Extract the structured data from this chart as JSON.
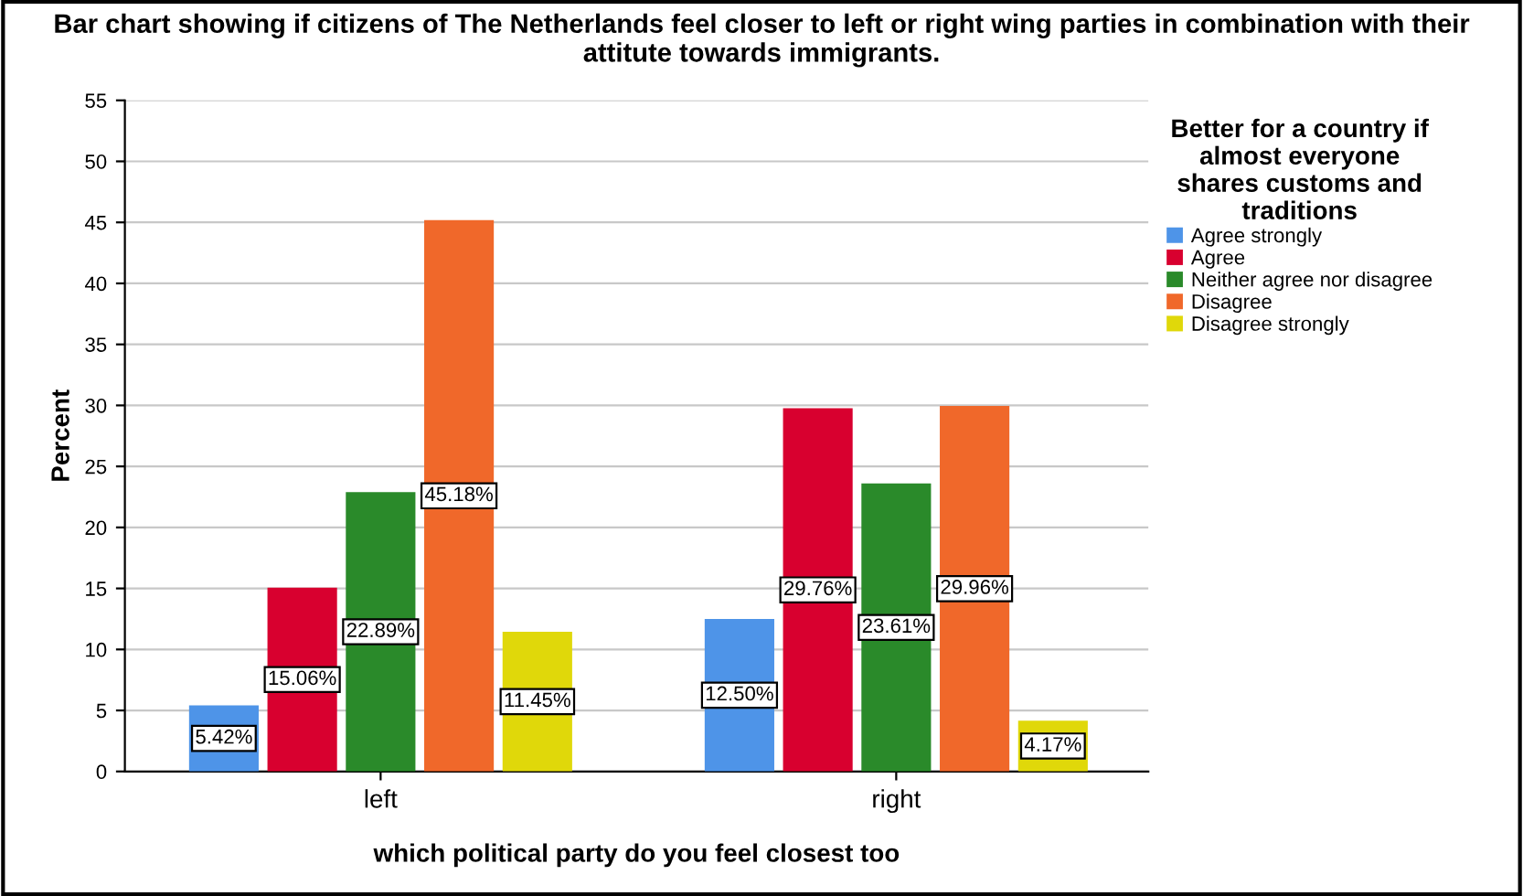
{
  "chart_data": {
    "type": "bar",
    "title": "Bar chart showing if citizens of The Netherlands feel closer to left or right wing parties in combination with their\nattitute towards immigrants.",
    "xlabel": "which political party do you feel closest too",
    "ylabel": "Percent",
    "legend_title": "Better for a country if\nalmost everyone\nshares customs and\ntraditions",
    "categories": [
      "left",
      "right"
    ],
    "series": [
      {
        "name": "Agree strongly",
        "color": "#4e94e8",
        "values": [
          5.42,
          12.5
        ]
      },
      {
        "name": "Agree",
        "color": "#d8002f",
        "values": [
          15.06,
          29.76
        ]
      },
      {
        "name": "Neither agree nor disagree",
        "color": "#2a8a2a",
        "values": [
          22.89,
          23.61
        ]
      },
      {
        "name": "Disagree",
        "color": "#f0682a",
        "values": [
          45.18,
          29.96
        ]
      },
      {
        "name": "Disagree strongly",
        "color": "#e0d80a",
        "values": [
          11.45,
          4.17
        ]
      }
    ],
    "value_labels": [
      [
        "5.42%",
        "12.50%"
      ],
      [
        "15.06%",
        "29.76%"
      ],
      [
        "22.89%",
        "23.61%"
      ],
      [
        "45.18%",
        "29.96%"
      ],
      [
        "11.45%",
        "4.17%"
      ]
    ],
    "ylim": [
      0,
      55
    ],
    "yticks": [
      0,
      5,
      10,
      15,
      20,
      25,
      30,
      35,
      40,
      45,
      50,
      55
    ],
    "grid": "y",
    "legend": "right"
  }
}
